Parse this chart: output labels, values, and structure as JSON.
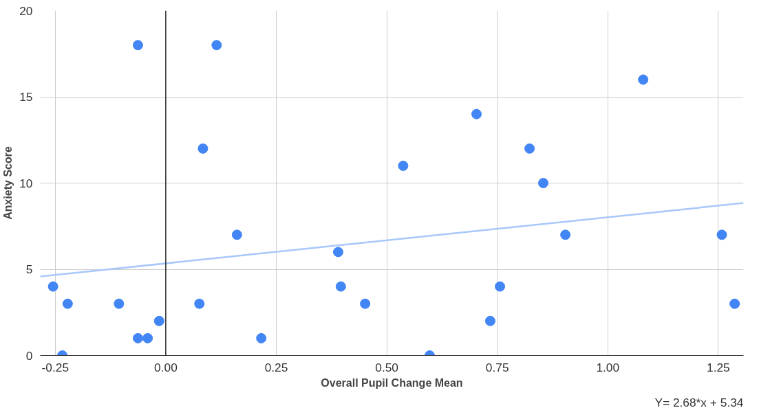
{
  "chart_data": {
    "type": "scatter",
    "xlabel": "Overall Pupil Change Mean",
    "ylabel": "Anxiety Score",
    "annotations": [
      "Y= 2.68*x + 5.34"
    ],
    "series": [
      {
        "marker": "circle",
        "color": "#4285f4",
        "x": [
          -0.255,
          -0.222,
          -0.234,
          -0.106,
          -0.063,
          -0.063,
          -0.041,
          -0.015,
          0.076,
          0.084,
          0.115,
          0.161,
          0.216,
          0.39,
          0.396,
          0.451,
          0.537,
          0.597,
          0.703,
          0.734,
          0.756,
          0.823,
          0.854,
          0.904,
          1.08,
          1.258,
          1.287
        ],
        "values": [
          4,
          3,
          0,
          3,
          18,
          1,
          1,
          2,
          3,
          12,
          18,
          7,
          1,
          6,
          4,
          3,
          11,
          0,
          14,
          2,
          4,
          12,
          10,
          7,
          16,
          7,
          3
        ]
      },
      {
        "type": "line",
        "marker": "none",
        "color": "#a8c7fa",
        "x": [
          -0.284,
          1.307
        ],
        "values": [
          4.58,
          8.84
        ]
      }
    ],
    "xlim": [
      -0.284,
      1.307
    ],
    "ylim": [
      0,
      20
    ],
    "xticks": [
      {
        "value": -0.25,
        "label": "-0.25"
      },
      {
        "value": 0,
        "label": "0.00"
      },
      {
        "value": 0.25,
        "label": "0.25"
      },
      {
        "value": 0.5,
        "label": "0.50"
      },
      {
        "value": 0.75,
        "label": "0.75"
      },
      {
        "value": 1,
        "label": "1.00"
      },
      {
        "value": 1.25,
        "label": "1.25"
      }
    ],
    "yticks": [
      0,
      5,
      10,
      15,
      20
    ],
    "ref_lines": [
      {
        "axis": "x",
        "value": 0,
        "color": "#000000"
      }
    ],
    "grid": true
  }
}
